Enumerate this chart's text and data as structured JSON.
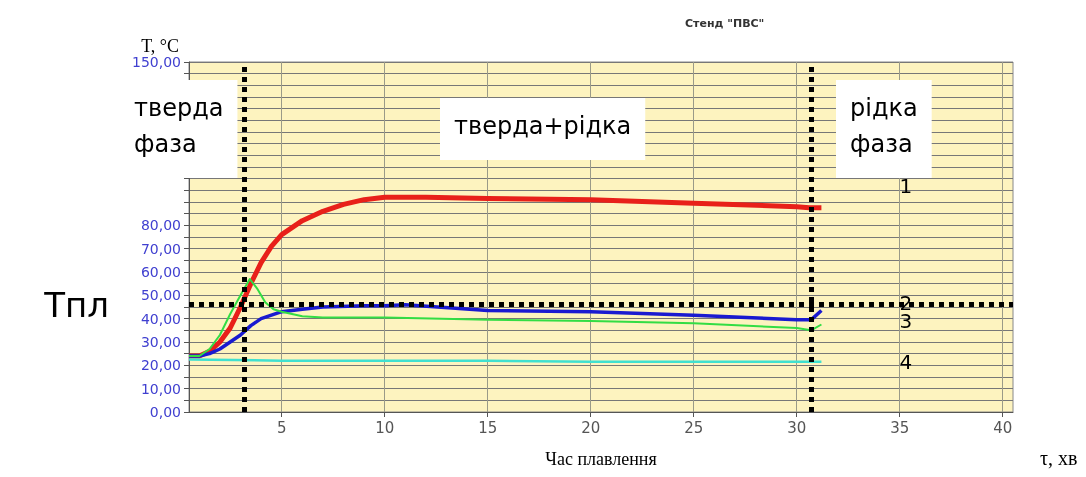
{
  "chart_data": {
    "type": "line",
    "title": "Стенд \"ПВС\"",
    "xlabel": "Час плавлення",
    "ylabel": "T, °C",
    "annotations": [
      "тверда фаза",
      "тверда+рідка",
      "рідка фаза",
      "τ, хв"
    ],
    "xlim": [
      0.5,
      40.5
    ],
    "xticks": [
      5,
      10,
      15,
      20,
      25,
      30,
      35,
      40
    ],
    "ylim": [
      0,
      150
    ],
    "yticks": [
      {
        "value": 0,
        "label": "0,00"
      },
      {
        "value": 5,
        "label": null
      },
      {
        "value": 10,
        "label": "10,00"
      },
      {
        "value": 15,
        "label": null
      },
      {
        "value": 20,
        "label": "20,00"
      },
      {
        "value": 25,
        "label": null
      },
      {
        "value": 30,
        "label": "30,00"
      },
      {
        "value": 35,
        "label": null
      },
      {
        "value": 40,
        "label": "40,00"
      },
      {
        "value": 45,
        "label": null
      },
      {
        "value": 50,
        "label": "50,00"
      },
      {
        "value": 55,
        "label": null
      },
      {
        "value": 60,
        "label": "60,00"
      },
      {
        "value": 65,
        "label": null
      },
      {
        "value": 70,
        "label": "70,00"
      },
      {
        "value": 75,
        "label": null
      },
      {
        "value": 80,
        "label": "80,00"
      },
      {
        "value": 85,
        "label": null
      },
      {
        "value": 90,
        "label": null
      },
      {
        "value": 95,
        "label": null
      },
      {
        "value": 100,
        "label": null
      },
      {
        "value": 105,
        "label": null
      },
      {
        "value": 110,
        "label": null
      },
      {
        "value": 115,
        "label": null
      },
      {
        "value": 120,
        "label": null
      },
      {
        "value": 125,
        "label": null
      },
      {
        "value": 130,
        "label": null
      },
      {
        "value": 135,
        "label": null
      },
      {
        "value": 140,
        "label": null
      },
      {
        "value": 145,
        "label": null
      },
      {
        "value": 150,
        "label": "150,00"
      }
    ],
    "grid": true,
    "legend": false,
    "marker": "none",
    "series": [
      {
        "name": "1",
        "color": "#e8201a",
        "x": [
          0.5,
          1,
          1.5,
          2,
          2.5,
          3,
          3.5,
          4,
          4.5,
          5,
          6,
          7,
          8,
          9,
          10,
          12,
          15,
          20,
          25,
          30,
          30.6,
          31.2
        ],
        "values": [
          24,
          24,
          26,
          30,
          36,
          45,
          55,
          64,
          71,
          76,
          82,
          86,
          89,
          91,
          92,
          92,
          91.5,
          91,
          89.5,
          88,
          87.5,
          87.5
        ]
      },
      {
        "name": "2",
        "color": "#1a1ad0",
        "x": [
          0.5,
          1,
          1.5,
          2,
          2.5,
          3,
          3.5,
          4,
          5,
          6,
          7,
          9,
          10,
          11,
          15,
          20,
          25,
          30,
          30.7,
          31.2
        ],
        "values": [
          24,
          24,
          25,
          27,
          30,
          33,
          37,
          40,
          43,
          44,
          45,
          45.5,
          45.5,
          46,
          43.5,
          43,
          41.5,
          39.5,
          39.5,
          43.5
        ]
      },
      {
        "name": "3",
        "color": "#33dd44",
        "x": [
          0.5,
          1,
          1.5,
          2,
          2.5,
          3,
          3.45,
          3.8,
          4.2,
          4.6,
          5,
          6,
          7,
          10,
          15,
          20,
          25,
          30,
          30.7,
          31.2
        ],
        "values": [
          24,
          24,
          27,
          33,
          42,
          50,
          57,
          53,
          47,
          44,
          43,
          41,
          40.5,
          40.5,
          39.5,
          39,
          38,
          36,
          35,
          37.5
        ]
      },
      {
        "name": "4",
        "color": "#40e0d0",
        "x": [
          0.5,
          5,
          10,
          15,
          20,
          25,
          31.2
        ],
        "values": [
          22.5,
          22,
          22,
          22,
          21.5,
          21.5,
          21.5
        ]
      }
    ],
    "ref_lines": [
      {
        "axis": "x",
        "value": 3.2,
        "color": "#000000",
        "line_style": "dotted"
      },
      {
        "axis": "x",
        "value": 30.7,
        "color": "#000000",
        "line_style": "dotted"
      },
      {
        "axis": "y",
        "value": 46,
        "label": "Тпл",
        "color": "#000000",
        "line_style": "dotted"
      }
    ]
  }
}
